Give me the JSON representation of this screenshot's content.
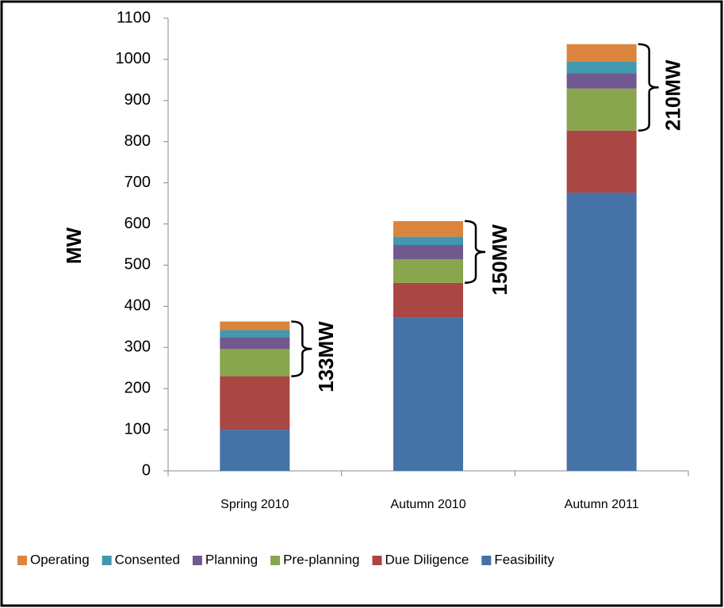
{
  "chart_data": {
    "type": "stacked_bar",
    "y_label": "MW",
    "categories": [
      "Spring 2010",
      "Autumn 2010",
      "Autumn 2011"
    ],
    "series": [
      {
        "name": "Feasibility",
        "color": "#4572a7",
        "values": [
          100,
          372,
          676
        ]
      },
      {
        "name": "Due Diligence",
        "color": "#aa4643",
        "values": [
          130,
          85,
          151
        ]
      },
      {
        "name": "Pre-planning",
        "color": "#89a54e",
        "values": [
          66,
          57,
          102
        ]
      },
      {
        "name": "Planning",
        "color": "#71588f",
        "values": [
          29,
          35,
          37
        ]
      },
      {
        "name": "Consented",
        "color": "#4198af",
        "values": [
          17,
          20,
          28
        ]
      },
      {
        "name": "Operating",
        "color": "#db843d",
        "values": [
          21,
          38,
          43
        ]
      }
    ],
    "annotations": [
      "133MW",
      "150MW",
      "210MW"
    ],
    "ylim": [
      0,
      1100
    ],
    "yticks": [
      0,
      100,
      200,
      300,
      400,
      500,
      600,
      700,
      800,
      900,
      1000,
      1100
    ],
    "grid": false,
    "legend": "bottom"
  }
}
